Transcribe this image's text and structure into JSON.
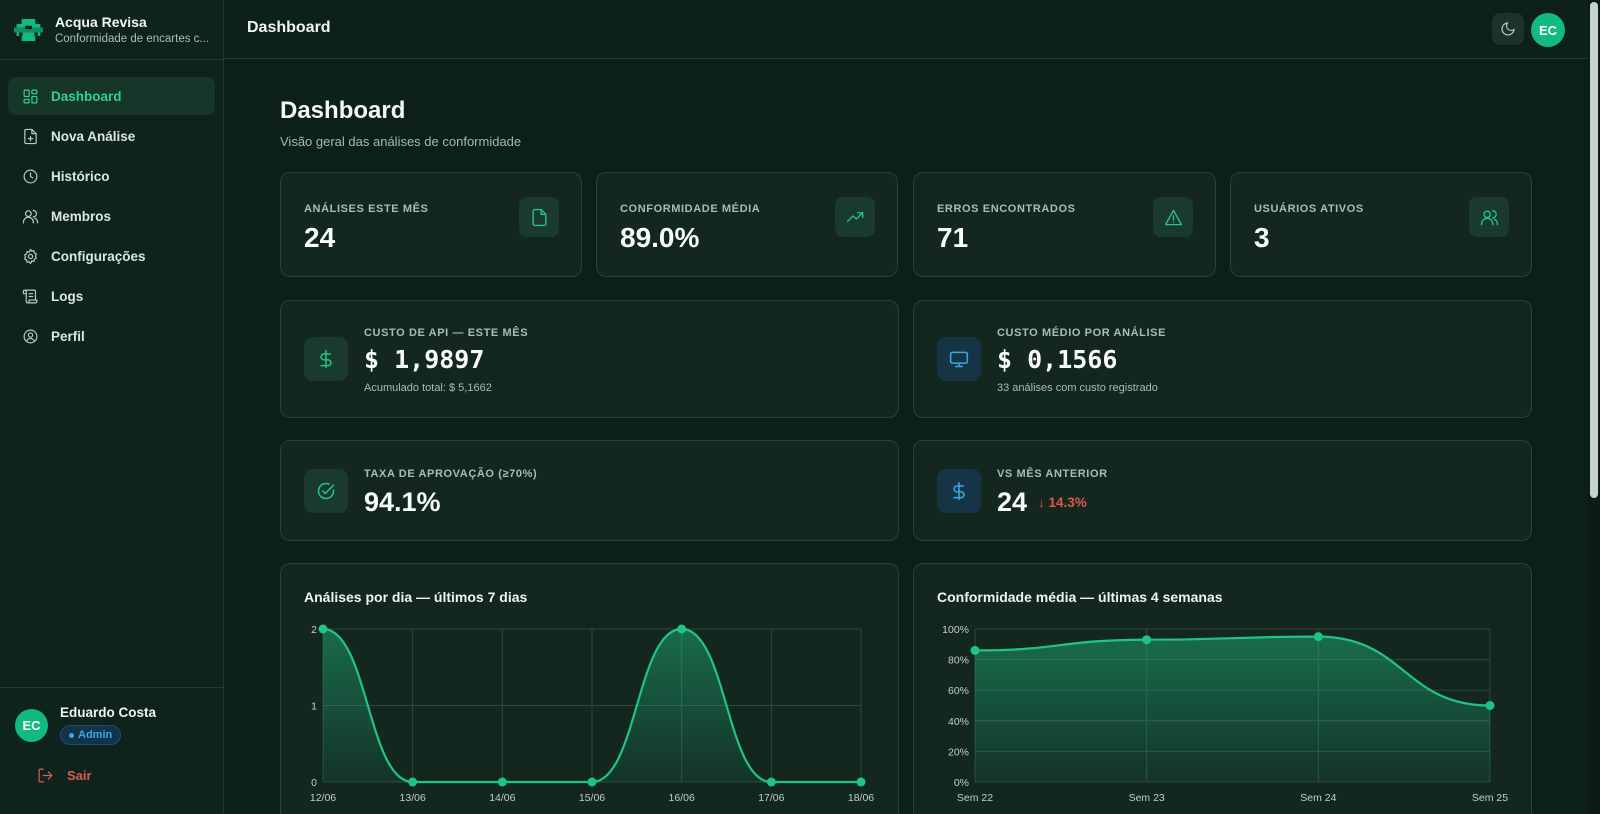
{
  "app": {
    "name": "Acqua Revisa",
    "subtitle": "Conformidade de encartes c...",
    "colors": {
      "accent": "#2fd18f",
      "background": "#0c1f19",
      "card": "#13271f",
      "danger": "#e05a4f",
      "info": "#3aa8e6"
    }
  },
  "sidebar": {
    "items": [
      {
        "label": "Dashboard",
        "icon": "dashboard-grid-icon",
        "active": true
      },
      {
        "label": "Nova Análise",
        "icon": "file-plus-icon",
        "active": false
      },
      {
        "label": "Histórico",
        "icon": "clock-icon",
        "active": false
      },
      {
        "label": "Membros",
        "icon": "users-icon",
        "active": false
      },
      {
        "label": "Configurações",
        "icon": "gear-icon",
        "active": false
      },
      {
        "label": "Logs",
        "icon": "scroll-icon",
        "active": false
      },
      {
        "label": "Perfil",
        "icon": "user-circle-icon",
        "active": false
      }
    ],
    "user": {
      "initials": "EC",
      "name": "Eduardo Costa",
      "role": "Admin"
    },
    "logout_label": "Sair"
  },
  "topbar": {
    "title": "Dashboard",
    "avatar_initials": "EC",
    "theme_icon": "moon-icon"
  },
  "page": {
    "title": "Dashboard",
    "subtitle": "Visão geral das análises de conformidade"
  },
  "stats": [
    {
      "label": "ANÁLISES ESTE MÊS",
      "value": "24",
      "icon": "file-icon"
    },
    {
      "label": "CONFORMIDADE MÉDIA",
      "value": "89.0%",
      "icon": "trending-up-icon"
    },
    {
      "label": "ERROS ENCONTRADOS",
      "value": "71",
      "icon": "alert-triangle-icon"
    },
    {
      "label": "USUÁRIOS ATIVOS",
      "value": "3",
      "icon": "users-icon"
    }
  ],
  "cost": {
    "api": {
      "label": "CUSTO DE API — ESTE MÊS",
      "value": "$ 1,9897",
      "note": "Acumulado total: $ 5,1662",
      "icon": "dollar-icon"
    },
    "avg": {
      "label": "CUSTO MÉDIO POR ANÁLISE",
      "value": "$ 0,1566",
      "note": "33 análises com custo registrado",
      "icon": "monitor-icon"
    }
  },
  "approval": {
    "label": "TAXA DE APROVAÇÃO (≥70%)",
    "value": "94.1%",
    "icon": "check-circle-icon"
  },
  "previous": {
    "label": "VS MÊS ANTERIOR",
    "value": "24",
    "delta": "↓ 14.3%",
    "icon": "dollar-icon"
  },
  "chart_data": [
    {
      "type": "area",
      "title": "Análises por dia — últimos 7 dias",
      "categories": [
        "12/06",
        "13/06",
        "14/06",
        "15/06",
        "16/06",
        "17/06",
        "18/06"
      ],
      "values": [
        2,
        0,
        0,
        0,
        2,
        0,
        0
      ],
      "yticks": [
        "0",
        "1",
        "2"
      ],
      "ylim": [
        0,
        2
      ],
      "grid": true
    },
    {
      "type": "area",
      "title": "Conformidade média — últimas 4 semanas",
      "categories": [
        "Sem 22",
        "Sem 23",
        "Sem 24",
        "Sem 25"
      ],
      "values": [
        86,
        93,
        95,
        50
      ],
      "yticks": [
        "0%",
        "20%",
        "40%",
        "60%",
        "80%",
        "100%"
      ],
      "ylim": [
        0,
        100
      ],
      "grid": true
    }
  ]
}
